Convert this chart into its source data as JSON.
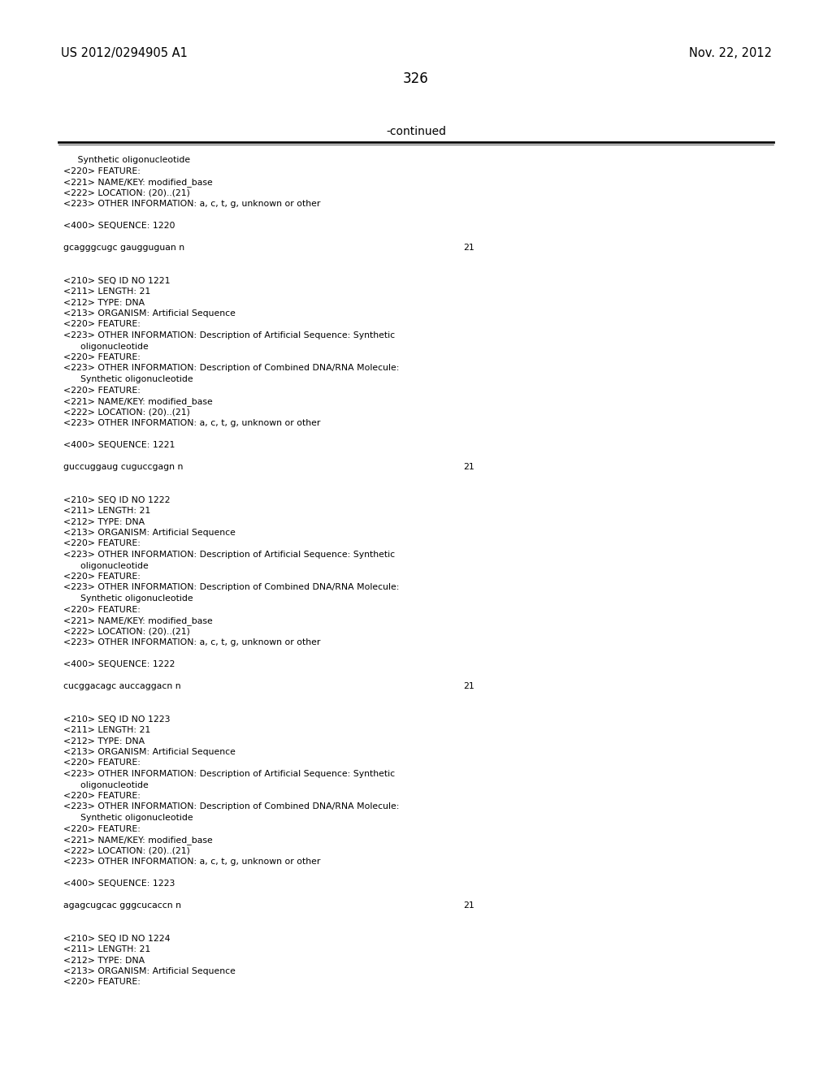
{
  "header_left": "US 2012/0294905 A1",
  "header_right": "Nov. 22, 2012",
  "page_number": "326",
  "continued_label": "-continued",
  "background_color": "#ffffff",
  "text_color": "#000000",
  "body_lines": [
    "     Synthetic oligonucleotide",
    "<220> FEATURE:",
    "<221> NAME/KEY: modified_base",
    "<222> LOCATION: (20)..(21)",
    "<223> OTHER INFORMATION: a, c, t, g, unknown or other",
    "",
    "<400> SEQUENCE: 1220",
    "",
    "gcagggcugc gaugguguan n",
    "",
    "",
    "<210> SEQ ID NO 1221",
    "<211> LENGTH: 21",
    "<212> TYPE: DNA",
    "<213> ORGANISM: Artificial Sequence",
    "<220> FEATURE:",
    "<223> OTHER INFORMATION: Description of Artificial Sequence: Synthetic",
    "      oligonucleotide",
    "<220> FEATURE:",
    "<223> OTHER INFORMATION: Description of Combined DNA/RNA Molecule:",
    "      Synthetic oligonucleotide",
    "<220> FEATURE:",
    "<221> NAME/KEY: modified_base",
    "<222> LOCATION: (20)..(21)",
    "<223> OTHER INFORMATION: a, c, t, g, unknown or other",
    "",
    "<400> SEQUENCE: 1221",
    "",
    "guccuggaug cuguccgagn n",
    "",
    "",
    "<210> SEQ ID NO 1222",
    "<211> LENGTH: 21",
    "<212> TYPE: DNA",
    "<213> ORGANISM: Artificial Sequence",
    "<220> FEATURE:",
    "<223> OTHER INFORMATION: Description of Artificial Sequence: Synthetic",
    "      oligonucleotide",
    "<220> FEATURE:",
    "<223> OTHER INFORMATION: Description of Combined DNA/RNA Molecule:",
    "      Synthetic oligonucleotide",
    "<220> FEATURE:",
    "<221> NAME/KEY: modified_base",
    "<222> LOCATION: (20)..(21)",
    "<223> OTHER INFORMATION: a, c, t, g, unknown or other",
    "",
    "<400> SEQUENCE: 1222",
    "",
    "cucggacagc auccaggacn n",
    "",
    "",
    "<210> SEQ ID NO 1223",
    "<211> LENGTH: 21",
    "<212> TYPE: DNA",
    "<213> ORGANISM: Artificial Sequence",
    "<220> FEATURE:",
    "<223> OTHER INFORMATION: Description of Artificial Sequence: Synthetic",
    "      oligonucleotide",
    "<220> FEATURE:",
    "<223> OTHER INFORMATION: Description of Combined DNA/RNA Molecule:",
    "      Synthetic oligonucleotide",
    "<220> FEATURE:",
    "<221> NAME/KEY: modified_base",
    "<222> LOCATION: (20)..(21)",
    "<223> OTHER INFORMATION: a, c, t, g, unknown or other",
    "",
    "<400> SEQUENCE: 1223",
    "",
    "agagcugcac gggcucaccn n",
    "",
    "",
    "<210> SEQ ID NO 1224",
    "<211> LENGTH: 21",
    "<212> TYPE: DNA",
    "<213> ORGANISM: Artificial Sequence",
    "<220> FEATURE:"
  ],
  "sequence_line_indices": [
    8,
    28,
    48,
    68
  ],
  "sequence_number": "21"
}
